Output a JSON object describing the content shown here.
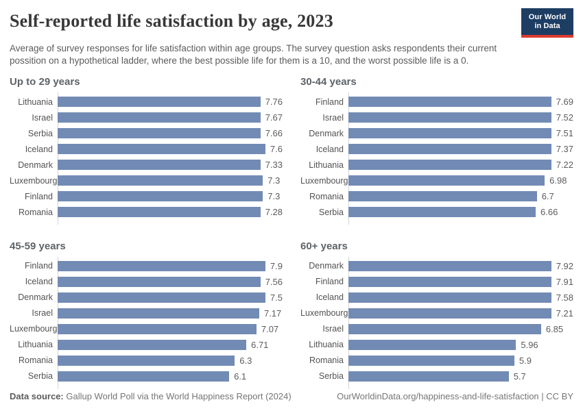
{
  "header": {
    "title": "Self-reported life satisfaction by age, 2023",
    "subtitle": "Average of survey responses for life satisfaction within age groups. The survey question asks respondents their current possition on a hypothetical ladder, where the best possible life for them is a 10, and the worst possible life is a 0.",
    "logo": {
      "line1": "Our World",
      "line2": "in Data"
    }
  },
  "chart_data": [
    {
      "type": "bar",
      "orientation": "horizontal",
      "title": "Up to 29 years",
      "categories": [
        "Lithuania",
        "Israel",
        "Serbia",
        "Iceland",
        "Denmark",
        "Luxembourg",
        "Finland",
        "Romania"
      ],
      "values": [
        7.76,
        7.67,
        7.66,
        7.6,
        7.33,
        7.3,
        7.3,
        7.28
      ],
      "xlim": [
        0,
        8
      ],
      "value_labels": true,
      "grid": false
    },
    {
      "type": "bar",
      "orientation": "horizontal",
      "title": "30-44 years",
      "categories": [
        "Finland",
        "Israel",
        "Denmark",
        "Iceland",
        "Lithuania",
        "Luxembourg",
        "Romania",
        "Serbia"
      ],
      "values": [
        7.69,
        7.52,
        7.51,
        7.37,
        7.22,
        6.98,
        6.7,
        6.66
      ],
      "xlim": [
        0,
        8
      ],
      "value_labels": true,
      "grid": false
    },
    {
      "type": "bar",
      "orientation": "horizontal",
      "title": "45-59 years",
      "categories": [
        "Finland",
        "Iceland",
        "Denmark",
        "Israel",
        "Luxembourg",
        "Lithuania",
        "Romania",
        "Serbia"
      ],
      "values": [
        7.9,
        7.56,
        7.5,
        7.17,
        7.07,
        6.71,
        6.3,
        6.1
      ],
      "xlim": [
        0,
        8
      ],
      "value_labels": true,
      "grid": false
    },
    {
      "type": "bar",
      "orientation": "horizontal",
      "title": "60+ years",
      "categories": [
        "Denmark",
        "Finland",
        "Iceland",
        "Luxembourg",
        "Israel",
        "Lithuania",
        "Romania",
        "Serbia"
      ],
      "values": [
        7.92,
        7.91,
        7.58,
        7.21,
        6.85,
        5.96,
        5.9,
        5.7
      ],
      "xlim": [
        0,
        8
      ],
      "value_labels": true,
      "grid": false
    }
  ],
  "footer": {
    "datasource_label": "Data source:",
    "datasource_text": " Gallup World Poll via the World Happiness Report (2024)",
    "attribution": "OurWorldinData.org/happiness-and-life-satisfaction | CC BY"
  },
  "colors": {
    "bar": "#728bb4",
    "logo_navy": "#1d3d63",
    "logo_red": "#dc3b2e",
    "title_text": "#383838",
    "body_text": "#5b5b5b"
  }
}
